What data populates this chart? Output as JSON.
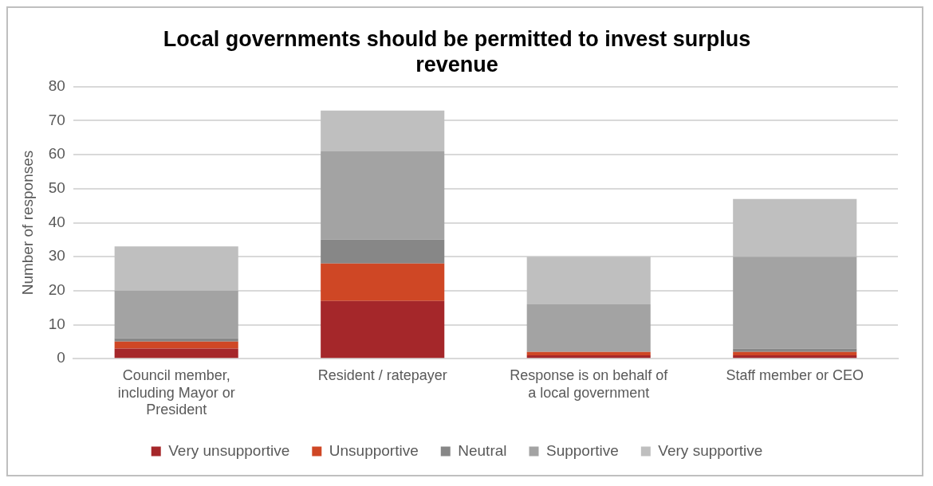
{
  "chart_data": {
    "type": "bar",
    "title": "Local governments should be permitted to invest surplus revenue",
    "ylabel": "Number of responses",
    "categories": [
      "Council member, including Mayor or President",
      "Resident / ratepayer",
      "Response is on behalf of a local government",
      "Staff member or CEO"
    ],
    "stacked": true,
    "ylim": [
      0,
      80
    ],
    "yticks": [
      0,
      10,
      20,
      30,
      40,
      50,
      60,
      70,
      80
    ],
    "grid": "y",
    "legend": "bottom",
    "series": [
      {
        "name": "Very unsupportive",
        "color": "#a5272a",
        "values": [
          3,
          17,
          1,
          1
        ]
      },
      {
        "name": "Unsupportive",
        "color": "#cf4725",
        "values": [
          2,
          11,
          1,
          1
        ]
      },
      {
        "name": "Neutral",
        "color": "#878787",
        "values": [
          1,
          7,
          0,
          1
        ]
      },
      {
        "name": "Supportive",
        "color": "#a3a3a3",
        "values": [
          14,
          26,
          14,
          27
        ]
      },
      {
        "name": "Very supportive",
        "color": "#bfbfbf",
        "values": [
          13,
          12,
          14,
          17
        ]
      }
    ]
  }
}
